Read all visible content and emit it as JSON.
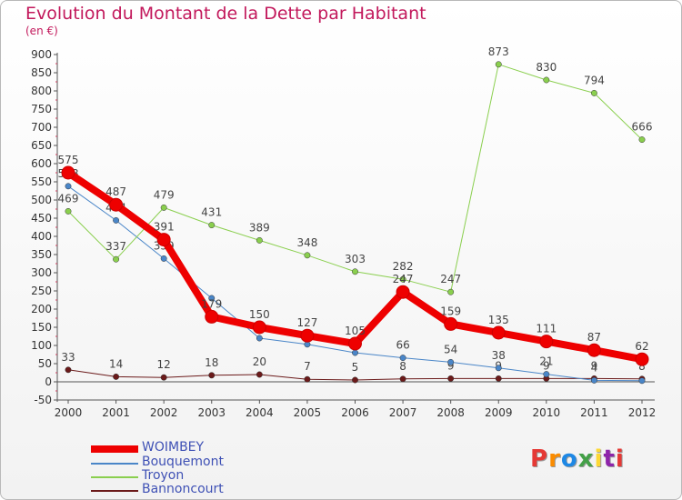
{
  "header": {
    "title": "Evolution du Montant de la Dette par Habitant",
    "unit": "(en €)"
  },
  "logo": {
    "text": "Proxiti",
    "colors": [
      "#e53935",
      "#fb8c00",
      "#1e88e5",
      "#43a047",
      "#fdd835",
      "#8e24aa",
      "#e53935"
    ]
  },
  "chart_data": {
    "type": "line",
    "x": [
      "2000",
      "2001",
      "2002",
      "2003",
      "2004",
      "2005",
      "2006",
      "2007",
      "2008",
      "2009",
      "2010",
      "2011",
      "2012"
    ],
    "ylim": [
      -50,
      900
    ],
    "yticks": [
      "-50",
      "0",
      "50",
      "100",
      "150",
      "200",
      "250",
      "300",
      "350",
      "400",
      "450",
      "500",
      "550",
      "600",
      "650",
      "700",
      "750",
      "800",
      "850",
      "900"
    ],
    "grid": false,
    "legend_position": "bottom-left",
    "series": [
      {
        "name": "Bannoncourt",
        "color": "#6b1a1a",
        "width": 1,
        "values": [
          33,
          14,
          12,
          18,
          20,
          7,
          5,
          8,
          9,
          9,
          9,
          9,
          8
        ],
        "labels": [
          "33",
          "14",
          "12",
          "18",
          "20",
          "7",
          "5",
          "8",
          "9",
          "9",
          "9",
          "9",
          "8"
        ]
      },
      {
        "name": "Bouquemont",
        "color": "#4a86c8",
        "width": 1,
        "values": [
          538,
          444,
          339,
          230,
          120,
          103,
          80,
          66,
          54,
          38,
          21,
          4,
          3
        ],
        "labels": [
          "538",
          "444",
          "339",
          "",
          "",
          "",
          "",
          "66",
          "54",
          "38",
          "21",
          "4",
          ""
        ]
      },
      {
        "name": "Troyon",
        "color": "#8acf4e",
        "width": 1,
        "values": [
          469,
          337,
          479,
          431,
          389,
          348,
          303,
          282,
          247,
          873,
          830,
          794,
          666
        ],
        "labels": [
          "469",
          "337",
          "479",
          "431",
          "389",
          "348",
          "303",
          "282",
          "247",
          "873",
          "830",
          "794",
          "666"
        ]
      },
      {
        "name": "WOIMBEY",
        "color": "#ee0000",
        "width": 8,
        "values": [
          575,
          487,
          391,
          179,
          150,
          127,
          105,
          247,
          159,
          135,
          111,
          87,
          62
        ],
        "labels": [
          "575",
          "487",
          "391",
          "179",
          "150",
          "127",
          "105",
          "247",
          "159",
          "135",
          "111",
          "87",
          "62"
        ]
      }
    ]
  },
  "legend": [
    {
      "name": "WOIMBEY",
      "color": "#ee0000",
      "text_color": "#3f51b5"
    },
    {
      "name": "Bouquemont",
      "color": "#4a86c8",
      "text_color": "#3f51b5"
    },
    {
      "name": "Troyon",
      "color": "#8acf4e",
      "text_color": "#3f51b5"
    },
    {
      "name": "Bannoncourt",
      "color": "#6b1a1a",
      "text_color": "#3f51b5"
    }
  ]
}
